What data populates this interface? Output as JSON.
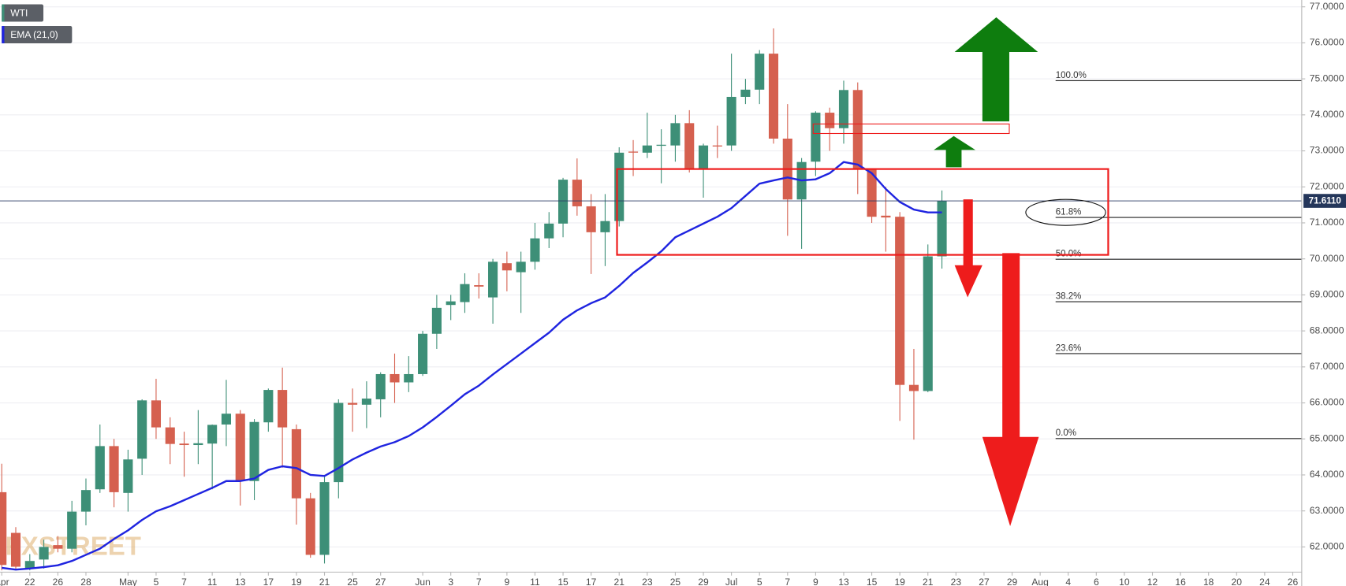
{
  "chart_data": {
    "type": "candlestick",
    "legend": "top-left",
    "grid": true,
    "watermark": "FXSTREET",
    "categories": [
      "Apr",
      null,
      "22",
      null,
      "26",
      null,
      "28",
      null,
      null,
      "May",
      null,
      "5",
      null,
      "7",
      null,
      "11",
      null,
      "13",
      null,
      "17",
      null,
      "19",
      null,
      "21",
      null,
      "25",
      null,
      "27",
      null,
      null,
      "Jun",
      null,
      "3",
      null,
      "7",
      null,
      "9",
      null,
      "11",
      null,
      "15",
      null,
      "17",
      null,
      "21",
      null,
      "23",
      null,
      "25",
      null,
      "29",
      null,
      "Jul",
      null,
      "5",
      null,
      "7",
      null,
      "9",
      null,
      "13",
      null,
      "15",
      null,
      "19",
      null,
      "21",
      null,
      "23",
      null,
      "27",
      null,
      "29",
      null,
      "Aug",
      null,
      "4",
      null,
      "6",
      null,
      "10",
      null,
      "12",
      null,
      "16",
      null,
      "18",
      null,
      "20",
      null,
      "24",
      null,
      "26",
      null
    ],
    "ylim": [
      61.3,
      77.19
    ],
    "yticks": [
      {
        "value": 62,
        "label": "62.0000"
      },
      {
        "value": 63,
        "label": "63.0000"
      },
      {
        "value": 64,
        "label": "64.0000"
      },
      {
        "value": 65,
        "label": "65.0000"
      },
      {
        "value": 66,
        "label": "66.0000"
      },
      {
        "value": 67,
        "label": "67.0000"
      },
      {
        "value": 68,
        "label": "68.0000"
      },
      {
        "value": 69,
        "label": "69.0000"
      },
      {
        "value": 70,
        "label": "70.0000"
      },
      {
        "value": 71,
        "label": "71.0000"
      },
      {
        "value": 72,
        "label": "72.0000"
      },
      {
        "value": 73,
        "label": "73.0000"
      },
      {
        "value": 74,
        "label": "74.0000"
      },
      {
        "value": 75,
        "label": "75.0000"
      },
      {
        "value": 76,
        "label": "76.0000"
      },
      {
        "value": 77,
        "label": "77.0000"
      }
    ],
    "last_price": {
      "value": 71.611,
      "label": "71.6110"
    },
    "fib_levels": [
      {
        "label": "100.0%",
        "value": 74.95
      },
      {
        "label": "61.8%",
        "value": 71.15
      },
      {
        "label": "50.0%",
        "value": 69.99
      },
      {
        "label": "38.2%",
        "value": 68.81
      },
      {
        "label": "23.6%",
        "value": 67.37
      },
      {
        "label": "0.0%",
        "value": 65.01
      }
    ],
    "series": [
      {
        "name": "WTI",
        "type": "candlestick",
        "up_color": "#3d8f77",
        "down_color": "#d5604f",
        "open": [
          63.52,
          62.39,
          61.4,
          61.65,
          62.05,
          61.95,
          62.98,
          63.6,
          64.8,
          63.5,
          64.45,
          66.07,
          65.32,
          64.87,
          64.83,
          64.87,
          65.4,
          65.7,
          63.83,
          65.46,
          66.36,
          65.27,
          63.35,
          61.78,
          63.8,
          66.0,
          65.95,
          66.1,
          66.8,
          66.57,
          66.8,
          67.92,
          68.72,
          68.8,
          69.27,
          68.93,
          69.88,
          69.63,
          69.92,
          70.57,
          70.98,
          72.2,
          71.46,
          70.74,
          71.05,
          72.98,
          72.95,
          73.15,
          73.15,
          73.77,
          72.5,
          73.15,
          73.15,
          74.5,
          74.7,
          75.7,
          73.34,
          71.65,
          72.7,
          74.06,
          73.63,
          74.69,
          72.5,
          71.2,
          71.17,
          66.5,
          66.33,
          70.07,
          null,
          null,
          null,
          null,
          null,
          null,
          null,
          null,
          null,
          null,
          null,
          null,
          null,
          null,
          null,
          null,
          null,
          null,
          null,
          null,
          null,
          null,
          null,
          null,
          null,
          null
        ],
        "high": [
          64.31,
          62.55,
          61.8,
          62.2,
          62.3,
          63.28,
          63.9,
          65.4,
          65.0,
          64.7,
          66.1,
          66.67,
          65.6,
          65.2,
          65.8,
          65.4,
          66.64,
          65.8,
          65.55,
          66.4,
          66.98,
          65.4,
          63.5,
          64.0,
          66.1,
          66.4,
          66.6,
          66.85,
          67.37,
          67.3,
          68.0,
          69.0,
          69.0,
          69.6,
          69.6,
          70.0,
          70.2,
          70.2,
          71.0,
          71.3,
          72.25,
          72.79,
          71.8,
          71.8,
          73.1,
          73.3,
          74.06,
          73.6,
          74.0,
          74.13,
          73.2,
          73.7,
          75.7,
          75.0,
          75.8,
          76.4,
          74.3,
          72.8,
          74.1,
          74.2,
          74.95,
          74.9,
          72.5,
          72.0,
          71.3,
          67.5,
          70.4,
          71.9,
          null,
          null,
          null,
          null,
          null,
          null,
          null,
          null,
          null,
          null,
          null,
          null,
          null,
          null,
          null,
          null,
          null,
          null,
          null,
          null,
          null,
          null,
          null,
          null,
          null,
          null
        ],
        "low": [
          61.35,
          61.35,
          61.35,
          61.4,
          61.85,
          61.85,
          62.6,
          63.5,
          63.1,
          62.98,
          64.0,
          65.0,
          64.3,
          63.95,
          64.3,
          63.6,
          64.8,
          63.15,
          63.3,
          65.2,
          64.2,
          62.62,
          61.7,
          61.54,
          63.35,
          65.2,
          65.3,
          65.6,
          66.0,
          66.3,
          66.75,
          67.5,
          68.3,
          68.5,
          68.9,
          68.2,
          69.1,
          68.5,
          69.7,
          70.3,
          70.6,
          71.2,
          69.58,
          69.8,
          70.9,
          72.3,
          72.8,
          72.1,
          72.7,
          72.4,
          71.7,
          72.8,
          73.0,
          74.3,
          74.3,
          73.2,
          70.64,
          70.28,
          72.3,
          73.0,
          73.2,
          71.8,
          71.0,
          70.2,
          65.5,
          64.98,
          66.3,
          69.73,
          null,
          null,
          null,
          null,
          null,
          null,
          null,
          null,
          null,
          null,
          null,
          null,
          null,
          null,
          null,
          null,
          null,
          null,
          null,
          null,
          null,
          null,
          null,
          null,
          null,
          null
        ],
        "close": [
          61.5,
          61.45,
          61.61,
          62.0,
          61.95,
          62.98,
          63.58,
          64.8,
          63.52,
          64.43,
          66.07,
          65.32,
          64.86,
          64.83,
          64.88,
          65.39,
          65.7,
          63.83,
          65.47,
          66.36,
          65.32,
          63.35,
          61.78,
          63.8,
          66.0,
          65.95,
          66.12,
          66.8,
          66.57,
          66.8,
          67.92,
          68.64,
          68.82,
          69.3,
          69.23,
          69.92,
          69.68,
          69.92,
          70.57,
          70.98,
          72.2,
          71.46,
          70.74,
          71.05,
          72.95,
          72.96,
          73.15,
          73.17,
          73.77,
          72.5,
          73.15,
          73.13,
          74.5,
          74.7,
          75.7,
          73.34,
          71.65,
          72.69,
          74.06,
          73.63,
          74.69,
          72.5,
          71.17,
          71.15,
          66.5,
          66.33,
          70.07,
          71.61,
          null,
          null,
          null,
          null,
          null,
          null,
          null,
          null,
          null,
          null,
          null,
          null,
          null,
          null,
          null,
          null,
          null,
          null,
          null,
          null,
          null,
          null,
          null,
          null,
          null,
          null
        ]
      },
      {
        "name": "EMA (21,0)",
        "type": "line",
        "color": "#1f24e0",
        "values": [
          61.42,
          61.37,
          61.4,
          61.44,
          61.49,
          61.61,
          61.78,
          61.95,
          62.22,
          62.46,
          62.75,
          62.99,
          63.13,
          63.3,
          63.47,
          63.64,
          63.83,
          63.83,
          63.9,
          64.14,
          64.24,
          64.19,
          64.0,
          63.97,
          64.19,
          64.43,
          64.62,
          64.79,
          64.91,
          65.08,
          65.32,
          65.61,
          65.92,
          66.24,
          66.48,
          66.79,
          67.08,
          67.37,
          67.66,
          67.95,
          68.31,
          68.57,
          68.77,
          68.93,
          69.25,
          69.61,
          69.9,
          70.21,
          70.6,
          70.79,
          70.98,
          71.17,
          71.41,
          71.75,
          72.09,
          72.18,
          72.26,
          72.18,
          72.21,
          72.38,
          72.69,
          72.62,
          72.38,
          71.94,
          71.58,
          71.37,
          71.29,
          71.29,
          null,
          null,
          null,
          null,
          null,
          null,
          null,
          null,
          null,
          null,
          null,
          null,
          null,
          null,
          null,
          null,
          null,
          null,
          null,
          null,
          null,
          null,
          null,
          null,
          null,
          null
        ]
      }
    ]
  }
}
